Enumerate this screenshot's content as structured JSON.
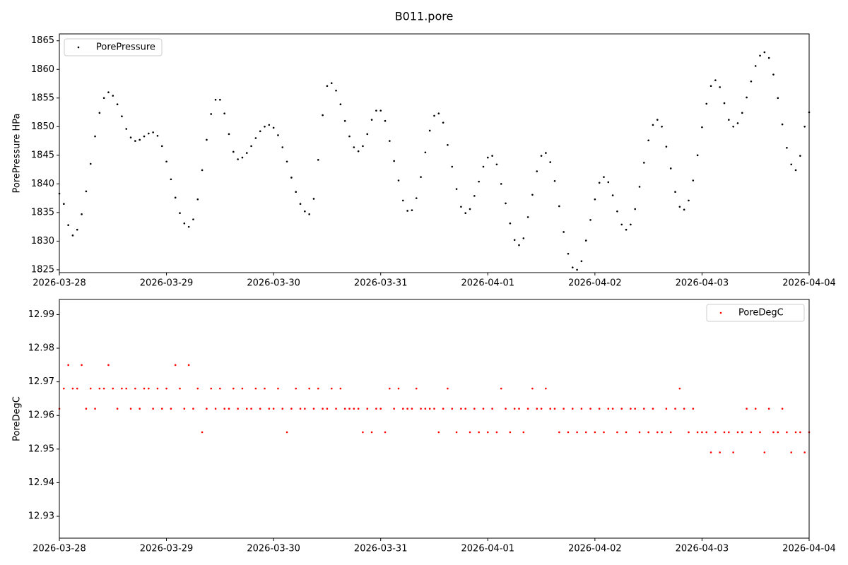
{
  "title": "B011.pore",
  "chart_data": [
    {
      "type": "scatter",
      "ylabel": "PorePressure HPa",
      "legend": "upper left",
      "xlim": [
        "2026-03-28",
        "2026-04-04"
      ],
      "xticks": [
        "2026-03-28",
        "2026-03-29",
        "2026-03-30",
        "2026-03-31",
        "2026-04-01",
        "2026-04-02",
        "2026-04-03",
        "2026-04-04"
      ],
      "ylim": [
        1824.5,
        1866.2
      ],
      "yticks": [
        1825,
        1830,
        1835,
        1840,
        1845,
        1850,
        1855,
        1860,
        1865
      ],
      "x": [
        "2026-03-28 00:00",
        "2026-03-28 01:00",
        "2026-03-28 02:00",
        "2026-03-28 03:00",
        "2026-03-28 04:00",
        "2026-03-28 05:00",
        "2026-03-28 06:00",
        "2026-03-28 07:00",
        "2026-03-28 08:00",
        "2026-03-28 09:00",
        "2026-03-28 10:00",
        "2026-03-28 11:00",
        "2026-03-28 12:00",
        "2026-03-28 13:00",
        "2026-03-28 14:00",
        "2026-03-28 15:00",
        "2026-03-28 16:00",
        "2026-03-28 17:00",
        "2026-03-28 18:00",
        "2026-03-28 19:00",
        "2026-03-28 20:00",
        "2026-03-28 21:00",
        "2026-03-28 22:00",
        "2026-03-28 23:00",
        "2026-03-29 00:00",
        "2026-03-29 01:00",
        "2026-03-29 02:00",
        "2026-03-29 03:00",
        "2026-03-29 04:00",
        "2026-03-29 05:00",
        "2026-03-29 06:00",
        "2026-03-29 07:00",
        "2026-03-29 08:00",
        "2026-03-29 09:00",
        "2026-03-29 10:00",
        "2026-03-29 11:00",
        "2026-03-29 12:00",
        "2026-03-29 13:00",
        "2026-03-29 14:00",
        "2026-03-29 15:00",
        "2026-03-29 16:00",
        "2026-03-29 17:00",
        "2026-03-29 18:00",
        "2026-03-29 19:00",
        "2026-03-29 20:00",
        "2026-03-29 21:00",
        "2026-03-29 22:00",
        "2026-03-29 23:00",
        "2026-03-30 00:00",
        "2026-03-30 01:00",
        "2026-03-30 02:00",
        "2026-03-30 03:00",
        "2026-03-30 04:00",
        "2026-03-30 05:00",
        "2026-03-30 06:00",
        "2026-03-30 07:00",
        "2026-03-30 08:00",
        "2026-03-30 09:00",
        "2026-03-30 10:00",
        "2026-03-30 11:00",
        "2026-03-30 12:00",
        "2026-03-30 13:00",
        "2026-03-30 14:00",
        "2026-03-30 15:00",
        "2026-03-30 16:00",
        "2026-03-30 17:00",
        "2026-03-30 18:00",
        "2026-03-30 19:00",
        "2026-03-30 20:00",
        "2026-03-30 21:00",
        "2026-03-30 22:00",
        "2026-03-30 23:00",
        "2026-03-31 00:00",
        "2026-03-31 01:00",
        "2026-03-31 02:00",
        "2026-03-31 03:00",
        "2026-03-31 04:00",
        "2026-03-31 05:00",
        "2026-03-31 06:00",
        "2026-03-31 07:00",
        "2026-03-31 08:00",
        "2026-03-31 09:00",
        "2026-03-31 10:00",
        "2026-03-31 11:00",
        "2026-03-31 12:00",
        "2026-03-31 13:00",
        "2026-03-31 14:00",
        "2026-03-31 15:00",
        "2026-03-31 16:00",
        "2026-03-31 17:00",
        "2026-03-31 18:00",
        "2026-03-31 19:00",
        "2026-03-31 20:00",
        "2026-03-31 21:00",
        "2026-03-31 22:00",
        "2026-03-31 23:00",
        "2026-04-01 00:00",
        "2026-04-01 01:00",
        "2026-04-01 02:00",
        "2026-04-01 03:00",
        "2026-04-01 04:00",
        "2026-04-01 05:00",
        "2026-04-01 06:00",
        "2026-04-01 07:00",
        "2026-04-01 08:00",
        "2026-04-01 09:00",
        "2026-04-01 10:00",
        "2026-04-01 11:00",
        "2026-04-01 12:00",
        "2026-04-01 13:00",
        "2026-04-01 14:00",
        "2026-04-01 15:00",
        "2026-04-01 16:00",
        "2026-04-01 17:00",
        "2026-04-01 18:00",
        "2026-04-01 19:00",
        "2026-04-01 20:00",
        "2026-04-01 21:00",
        "2026-04-01 22:00",
        "2026-04-01 23:00",
        "2026-04-02 00:00",
        "2026-04-02 01:00",
        "2026-04-02 02:00",
        "2026-04-02 03:00",
        "2026-04-02 04:00",
        "2026-04-02 05:00",
        "2026-04-02 06:00",
        "2026-04-02 07:00",
        "2026-04-02 08:00",
        "2026-04-02 09:00",
        "2026-04-02 10:00",
        "2026-04-02 11:00",
        "2026-04-02 12:00",
        "2026-04-02 13:00",
        "2026-04-02 14:00",
        "2026-04-02 15:00",
        "2026-04-02 16:00",
        "2026-04-02 17:00",
        "2026-04-02 18:00",
        "2026-04-02 19:00",
        "2026-04-02 20:00",
        "2026-04-02 21:00",
        "2026-04-02 22:00",
        "2026-04-02 23:00",
        "2026-04-03 00:00",
        "2026-04-03 01:00",
        "2026-04-03 02:00",
        "2026-04-03 03:00",
        "2026-04-03 04:00",
        "2026-04-03 05:00",
        "2026-04-03 06:00",
        "2026-04-03 07:00",
        "2026-04-03 08:00",
        "2026-04-03 09:00",
        "2026-04-03 10:00",
        "2026-04-03 11:00",
        "2026-04-03 12:00",
        "2026-04-03 13:00",
        "2026-04-03 14:00",
        "2026-04-03 15:00",
        "2026-04-03 16:00",
        "2026-04-03 17:00",
        "2026-04-03 18:00",
        "2026-04-03 19:00",
        "2026-04-03 20:00",
        "2026-04-03 21:00",
        "2026-04-03 22:00",
        "2026-04-03 23:00",
        "2026-04-04 00:00"
      ],
      "series": [
        {
          "name": "PorePressure",
          "color": "#000000",
          "values": [
            1838.3,
            1836.5,
            1832.8,
            1831,
            1832.0,
            1834.7,
            1838.7,
            1843.5,
            1848.3,
            1852.4,
            1855.0,
            1856,
            1855.4,
            1853.9,
            1851.8,
            1849.6,
            1848.1,
            1847.5,
            1847.7,
            1848.3,
            1848.8,
            1849,
            1848.4,
            1846.6,
            1843.9,
            1840.8,
            1837.6,
            1834.9,
            1833.1,
            1832.5,
            1833.8,
            1837.3,
            1842.4,
            1847.7,
            1852.2,
            1854.7,
            1854.7,
            1852.3,
            1848.7,
            1845.6,
            1844.3,
            1844.6,
            1845.4,
            1846.6,
            1848.0,
            1849.2,
            1850.0,
            1850.3,
            1849.8,
            1848.5,
            1846.4,
            1843.9,
            1841.1,
            1838.6,
            1836.5,
            1835.2,
            1834.7,
            1837.4,
            1844.2,
            1852.0,
            1857.1,
            1857.6,
            1856.3,
            1853.9,
            1851.0,
            1848.3,
            1846.4,
            1845.7,
            1846.6,
            1848.7,
            1851.2,
            1852.8,
            1852.8,
            1851.0,
            1847.5,
            1844.0,
            1840.6,
            1837.1,
            1835.3,
            1835.4,
            1837.5,
            1841.2,
            1845.5,
            1849.3,
            1851.9,
            1852.3,
            1850.7,
            1846.8,
            1843.0,
            1839.1,
            1836.0,
            1834.9,
            1835.6,
            1837.9,
            1840.4,
            1843.0,
            1844.6,
            1844.9,
            1843.4,
            1840.0,
            1836.6,
            1833.1,
            1830.2,
            1829.3,
            1830.5,
            1834.2,
            1838.1,
            1842.2,
            1844.9,
            1845.4,
            1843.8,
            1840.5,
            1836.1,
            1831.6,
            1827.8,
            1825.4,
            1825.0,
            1826.5,
            1830.1,
            1833.7,
            1837.3,
            1840.2,
            1841.2,
            1840.3,
            1838.0,
            1835.2,
            1832.9,
            1832,
            1832.9,
            1835.6,
            1839.5,
            1843.7,
            1847.6,
            1850.3,
            1851.2,
            1850.0,
            1846.5,
            1842.7,
            1838.6,
            1836.0,
            1835.5,
            1837.1,
            1840.6,
            1845.0,
            1849.9,
            1854.0,
            1857.1,
            1858.1,
            1856.9,
            1854.1,
            1851.2,
            1850,
            1850.6,
            1852.4,
            1855.1,
            1857.9,
            1860.6,
            1862.4,
            1863,
            1862.0,
            1859.1,
            1855.0,
            1850.4,
            1846.3,
            1843.4,
            1842.4,
            1844.9,
            1850.0,
            1852.5
          ]
        }
      ]
    },
    {
      "type": "scatter",
      "ylabel": "PoreDegC",
      "legend": "upper right",
      "xlim": [
        "2026-03-28",
        "2026-04-04"
      ],
      "xticks": [
        "2026-03-28",
        "2026-03-29",
        "2026-03-30",
        "2026-03-31",
        "2026-04-01",
        "2026-04-02",
        "2026-04-03",
        "2026-04-04"
      ],
      "ylim": [
        12.9235,
        12.9945
      ],
      "yticks": [
        12.93,
        12.94,
        12.95,
        12.96,
        12.97,
        12.98,
        12.99
      ],
      "x": [
        "2026-03-28 00:00",
        "2026-03-28 01:00",
        "2026-03-28 02:00",
        "2026-03-28 03:00",
        "2026-03-28 04:00",
        "2026-03-28 05:00",
        "2026-03-28 06:00",
        "2026-03-28 07:00",
        "2026-03-28 08:00",
        "2026-03-28 09:00",
        "2026-03-28 10:00",
        "2026-03-28 11:00",
        "2026-03-28 12:00",
        "2026-03-28 13:00",
        "2026-03-28 14:00",
        "2026-03-28 15:00",
        "2026-03-28 16:00",
        "2026-03-28 17:00",
        "2026-03-28 18:00",
        "2026-03-28 19:00",
        "2026-03-28 20:00",
        "2026-03-28 21:00",
        "2026-03-28 22:00",
        "2026-03-28 23:00",
        "2026-03-29 00:00",
        "2026-03-29 01:00",
        "2026-03-29 02:00",
        "2026-03-29 03:00",
        "2026-03-29 04:00",
        "2026-03-29 05:00",
        "2026-03-29 06:00",
        "2026-03-29 07:00",
        "2026-03-29 08:00",
        "2026-03-29 09:00",
        "2026-03-29 10:00",
        "2026-03-29 11:00",
        "2026-03-29 12:00",
        "2026-03-29 13:00",
        "2026-03-29 14:00",
        "2026-03-29 15:00",
        "2026-03-29 16:00",
        "2026-03-29 17:00",
        "2026-03-29 18:00",
        "2026-03-29 19:00",
        "2026-03-29 20:00",
        "2026-03-29 21:00",
        "2026-03-29 22:00",
        "2026-03-29 23:00",
        "2026-03-30 00:00",
        "2026-03-30 01:00",
        "2026-03-30 02:00",
        "2026-03-30 03:00",
        "2026-03-30 04:00",
        "2026-03-30 05:00",
        "2026-03-30 06:00",
        "2026-03-30 07:00",
        "2026-03-30 08:00",
        "2026-03-30 09:00",
        "2026-03-30 10:00",
        "2026-03-30 11:00",
        "2026-03-30 12:00",
        "2026-03-30 13:00",
        "2026-03-30 14:00",
        "2026-03-30 15:00",
        "2026-03-30 16:00",
        "2026-03-30 17:00",
        "2026-03-30 18:00",
        "2026-03-30 19:00",
        "2026-03-30 20:00",
        "2026-03-30 21:00",
        "2026-03-30 22:00",
        "2026-03-30 23:00",
        "2026-03-31 00:00",
        "2026-03-31 01:00",
        "2026-03-31 02:00",
        "2026-03-31 03:00",
        "2026-03-31 04:00",
        "2026-03-31 05:00",
        "2026-03-31 06:00",
        "2026-03-31 07:00",
        "2026-03-31 08:00",
        "2026-03-31 09:00",
        "2026-03-31 10:00",
        "2026-03-31 11:00",
        "2026-03-31 12:00",
        "2026-03-31 13:00",
        "2026-03-31 14:00",
        "2026-03-31 15:00",
        "2026-03-31 16:00",
        "2026-03-31 17:00",
        "2026-03-31 18:00",
        "2026-03-31 19:00",
        "2026-03-31 20:00",
        "2026-03-31 21:00",
        "2026-03-31 22:00",
        "2026-03-31 23:00",
        "2026-04-01 00:00",
        "2026-04-01 01:00",
        "2026-04-01 02:00",
        "2026-04-01 03:00",
        "2026-04-01 04:00",
        "2026-04-01 05:00",
        "2026-04-01 06:00",
        "2026-04-01 07:00",
        "2026-04-01 08:00",
        "2026-04-01 09:00",
        "2026-04-01 10:00",
        "2026-04-01 11:00",
        "2026-04-01 12:00",
        "2026-04-01 13:00",
        "2026-04-01 14:00",
        "2026-04-01 15:00",
        "2026-04-01 16:00",
        "2026-04-01 17:00",
        "2026-04-01 18:00",
        "2026-04-01 19:00",
        "2026-04-01 20:00",
        "2026-04-01 21:00",
        "2026-04-01 22:00",
        "2026-04-01 23:00",
        "2026-04-02 00:00",
        "2026-04-02 01:00",
        "2026-04-02 02:00",
        "2026-04-02 03:00",
        "2026-04-02 04:00",
        "2026-04-02 05:00",
        "2026-04-02 06:00",
        "2026-04-02 07:00",
        "2026-04-02 08:00",
        "2026-04-02 09:00",
        "2026-04-02 10:00",
        "2026-04-02 11:00",
        "2026-04-02 12:00",
        "2026-04-02 13:00",
        "2026-04-02 14:00",
        "2026-04-02 15:00",
        "2026-04-02 16:00",
        "2026-04-02 17:00",
        "2026-04-02 18:00",
        "2026-04-02 19:00",
        "2026-04-02 20:00",
        "2026-04-02 21:00",
        "2026-04-02 22:00",
        "2026-04-02 23:00",
        "2026-04-03 00:00",
        "2026-04-03 01:00",
        "2026-04-03 02:00",
        "2026-04-03 03:00",
        "2026-04-03 04:00",
        "2026-04-03 05:00",
        "2026-04-03 06:00",
        "2026-04-03 07:00",
        "2026-04-03 08:00",
        "2026-04-03 09:00",
        "2026-04-03 10:00",
        "2026-04-03 11:00",
        "2026-04-03 12:00",
        "2026-04-03 13:00",
        "2026-04-03 14:00",
        "2026-04-03 15:00",
        "2026-04-03 16:00",
        "2026-04-03 17:00",
        "2026-04-03 18:00",
        "2026-04-03 19:00",
        "2026-04-03 20:00",
        "2026-04-03 21:00",
        "2026-04-03 22:00",
        "2026-04-03 23:00",
        "2026-04-04 00:00"
      ],
      "series": [
        {
          "name": "PoreDegC",
          "color": "#ff0000",
          "values": [
            12.962,
            12.968,
            12.975,
            12.968,
            12.968,
            12.975,
            12.962,
            12.968,
            12.962,
            12.968,
            12.968,
            12.975,
            12.968,
            12.962,
            12.968,
            12.968,
            12.962,
            12.968,
            12.962,
            12.968,
            12.968,
            12.962,
            12.968,
            12.962,
            12.968,
            12.962,
            12.975,
            12.968,
            12.962,
            12.975,
            12.962,
            12.968,
            12.955,
            12.962,
            12.968,
            12.962,
            12.968,
            12.962,
            12.962,
            12.968,
            12.962,
            12.968,
            12.962,
            12.962,
            12.968,
            12.962,
            12.968,
            12.962,
            12.962,
            12.968,
            12.962,
            12.955,
            12.962,
            12.968,
            12.962,
            12.962,
            12.968,
            12.962,
            12.968,
            12.962,
            12.962,
            12.968,
            12.962,
            12.968,
            12.962,
            12.962,
            12.962,
            12.962,
            12.955,
            12.962,
            12.955,
            12.962,
            12.962,
            12.955,
            12.968,
            12.962,
            12.968,
            12.962,
            12.962,
            12.962,
            12.968,
            12.962,
            12.962,
            12.962,
            12.962,
            12.955,
            12.962,
            12.968,
            12.962,
            12.955,
            12.962,
            12.962,
            12.955,
            12.962,
            12.955,
            12.962,
            12.955,
            12.962,
            12.955,
            12.968,
            12.962,
            12.955,
            12.962,
            12.962,
            12.955,
            12.962,
            12.968,
            12.962,
            12.962,
            12.968,
            12.962,
            12.962,
            12.955,
            12.962,
            12.955,
            12.962,
            12.955,
            12.962,
            12.955,
            12.962,
            12.955,
            12.962,
            12.955,
            12.962,
            12.962,
            12.955,
            12.962,
            12.955,
            12.962,
            12.962,
            12.955,
            12.962,
            12.955,
            12.962,
            12.955,
            12.955,
            12.962,
            12.955,
            12.962,
            12.968,
            12.962,
            12.955,
            12.962,
            12.955,
            12.955,
            12.955,
            12.949,
            12.955,
            12.949,
            12.955,
            12.955,
            12.949,
            12.955,
            12.955,
            12.962,
            12.955,
            12.962,
            12.955,
            12.949,
            12.962,
            12.955,
            12.955,
            12.962,
            12.955,
            12.949,
            12.955,
            12.955,
            12.949,
            12.955
          ]
        }
      ]
    }
  ]
}
